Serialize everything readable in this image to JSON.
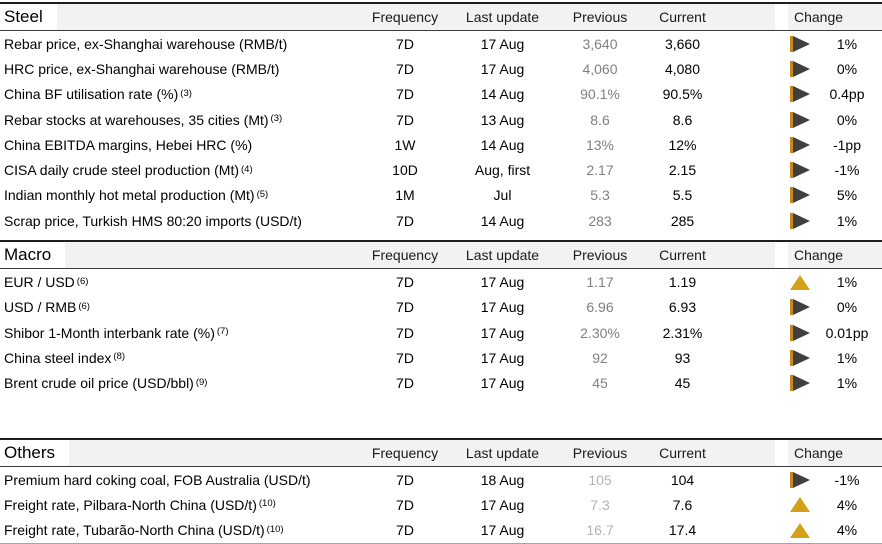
{
  "report": {
    "columns": {
      "frequency": "Frequency",
      "last_update": "Last update",
      "previous": "Previous",
      "current": "Current",
      "change": "Change"
    },
    "sections": [
      {
        "title": "Steel",
        "previous_muted": false,
        "rows": [
          {
            "label": "Rebar price, ex-Shanghai warehouse (RMB/t)",
            "sup": "",
            "frequency": "7D",
            "last_update": "17 Aug",
            "previous": "3,640",
            "current": "3,660",
            "direction": "flat",
            "change": "1%"
          },
          {
            "label": "HRC price, ex-Shanghai warehouse (RMB/t)",
            "sup": "",
            "frequency": "7D",
            "last_update": "17 Aug",
            "previous": "4,060",
            "current": "4,080",
            "direction": "flat",
            "change": "0%"
          },
          {
            "label": "China BF utilisation rate (%)",
            "sup": "(3)",
            "frequency": "7D",
            "last_update": "14 Aug",
            "previous": "90.1%",
            "current": "90.5%",
            "direction": "flat",
            "change": "0.4pp"
          },
          {
            "label": "Rebar stocks at warehouses, 35 cities (Mt)",
            "sup": "(3)",
            "frequency": "7D",
            "last_update": "13 Aug",
            "previous": "8.6",
            "current": "8.6",
            "direction": "flat",
            "change": "0%"
          },
          {
            "label": "China EBITDA margins, Hebei HRC (%)",
            "sup": "",
            "frequency": "1W",
            "last_update": "14 Aug",
            "previous": "13%",
            "current": "12%",
            "direction": "flat",
            "change": "-1pp"
          },
          {
            "label": "CISA daily crude steel production (Mt)",
            "sup": "(4)",
            "frequency": "10D",
            "last_update": "Aug, first",
            "previous": "2.17",
            "current": "2.15",
            "direction": "flat",
            "change": "-1%"
          },
          {
            "label": "Indian monthly hot metal production (Mt)",
            "sup": "(5)",
            "frequency": "1M",
            "last_update": "Jul",
            "previous": "5.3",
            "current": "5.5",
            "direction": "flat",
            "change": "5%"
          },
          {
            "label": "Scrap price, Turkish HMS 80:20 imports (USD/t)",
            "sup": "",
            "frequency": "7D",
            "last_update": "14 Aug",
            "previous": "283",
            "current": "285",
            "direction": "flat",
            "change": "1%"
          }
        ]
      },
      {
        "title": "Macro",
        "previous_muted": false,
        "rows": [
          {
            "label": "EUR / USD",
            "sup": "(6)",
            "frequency": "7D",
            "last_update": "17 Aug",
            "previous": "1.17",
            "current": "1.19",
            "direction": "up",
            "change": "1%"
          },
          {
            "label": "USD / RMB",
            "sup": "(6)",
            "frequency": "7D",
            "last_update": "17 Aug",
            "previous": "6.96",
            "current": "6.93",
            "direction": "flat",
            "change": "0%"
          },
          {
            "label": "Shibor 1-Month interbank rate (%)",
            "sup": "(7)",
            "frequency": "7D",
            "last_update": "17 Aug",
            "previous": "2.30%",
            "current": "2.31%",
            "direction": "flat",
            "change": "0.01pp"
          },
          {
            "label": "China steel index",
            "sup": "(8)",
            "frequency": "7D",
            "last_update": "17 Aug",
            "previous": "92",
            "current": "93",
            "direction": "flat",
            "change": "1%"
          },
          {
            "label": "Brent crude oil price (USD/bbl)",
            "sup": "(9)",
            "frequency": "7D",
            "last_update": "17 Aug",
            "previous": "45",
            "current": "45",
            "direction": "flat",
            "change": "1%"
          }
        ]
      },
      {
        "title": "Others",
        "previous_muted": true,
        "rows": [
          {
            "label": "Premium hard coking coal, FOB Australia (USD/t)",
            "sup": "",
            "frequency": "7D",
            "last_update": "18 Aug",
            "previous": "105",
            "current": "104",
            "direction": "flat",
            "change": "-1%"
          },
          {
            "label": "Freight rate, Pilbara-North China (USD/t)",
            "sup": "(10)",
            "frequency": "7D",
            "last_update": "17 Aug",
            "previous": "7.3",
            "current": "7.6",
            "direction": "up",
            "change": "4%"
          },
          {
            "label": "Freight rate, Tubarão-North China (USD/t)",
            "sup": "(10)",
            "frequency": "7D",
            "last_update": "17 Aug",
            "previous": "16.7",
            "current": "17.4",
            "direction": "up",
            "change": "4%"
          }
        ]
      }
    ]
  },
  "colors": {
    "up_triangle": "#D4A017",
    "flat_triangle": "#3F3F3F",
    "flat_triangle_edge": "#C8881E",
    "previous_text": "#808080",
    "previous_text_muted": "#B3B3B3",
    "header_bg": "#F2F2F2"
  }
}
